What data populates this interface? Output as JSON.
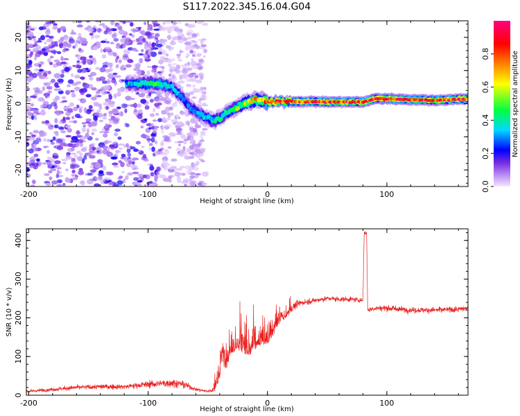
{
  "chart_data": [
    {
      "type": "heatmap",
      "title": "S117.2022.345.16.04.G04",
      "xlabel": "Height of straight line (km)",
      "ylabel": "Frequency (Hz)",
      "xlim": [
        -202,
        168
      ],
      "ylim": [
        -25,
        25
      ],
      "xticks": [
        -200,
        -100,
        0,
        100
      ],
      "yticks": [
        -20,
        -10,
        0,
        10,
        20
      ],
      "colorbar": {
        "label": "Normalized spectral amplitude",
        "range": [
          0,
          1
        ],
        "ticks": [
          "0.0",
          "0.2",
          "0.4",
          "0.6",
          "0.8"
        ],
        "tick_values": [
          0.0,
          0.2,
          0.4,
          0.6,
          0.8
        ],
        "colors": [
          "#f4e6ff",
          "#7b2fe0",
          "#0000ff",
          "#00d8ff",
          "#00ff40",
          "#ffff00",
          "#ff8000",
          "#ff0000",
          "#ff0080"
        ]
      },
      "noise_region": {
        "x_start": -202,
        "x_end": -52
      },
      "ridge": {
        "x": [
          -118,
          -110,
          -100,
          -90,
          -80,
          -72,
          -65,
          -58,
          -52,
          -46,
          -40,
          -35,
          -30,
          -25,
          -20,
          -15,
          -10,
          -5,
          0,
          10,
          20,
          40,
          60,
          80,
          90,
          100,
          120,
          140,
          168
        ],
        "y": [
          6,
          6,
          6,
          6,
          5,
          2,
          -1,
          -3,
          -4,
          -5,
          -4.5,
          -3,
          -2,
          -1,
          0,
          0.8,
          1.2,
          1.0,
          0.5,
          0.6,
          0.6,
          0.6,
          0.5,
          0.5,
          1.5,
          1.5,
          1.2,
          1.0,
          1.5
        ],
        "amplitude": [
          0.3,
          0.4,
          0.45,
          0.45,
          0.35,
          0.3,
          0.3,
          0.35,
          0.35,
          0.4,
          0.4,
          0.4,
          0.45,
          0.5,
          0.55,
          0.6,
          0.7,
          0.75,
          0.8,
          0.82,
          0.85,
          0.88,
          0.9,
          0.88,
          0.9,
          0.9,
          0.88,
          0.85,
          0.9
        ]
      }
    },
    {
      "type": "line",
      "title": "",
      "xlabel": "Height of straight line (km)",
      "ylabel": "SNR (10 * v/v)",
      "xlim": [
        -202,
        168
      ],
      "ylim": [
        0,
        430
      ],
      "xticks": [
        -200,
        -100,
        0,
        100
      ],
      "yticks": [
        0,
        100,
        200,
        300,
        400
      ],
      "series": [
        {
          "color": "#e8201e",
          "x": [
            -200,
            -180,
            -160,
            -140,
            -120,
            -100,
            -90,
            -80,
            -70,
            -60,
            -50,
            -45,
            -40,
            -38,
            -35,
            -30,
            -25,
            -20,
            -15,
            -10,
            -5,
            0,
            5,
            10,
            15,
            20,
            25,
            30,
            40,
            50,
            60,
            70,
            80,
            81,
            82,
            83,
            84,
            85,
            90,
            100,
            120,
            140,
            160,
            168
          ],
          "y": [
            10,
            15,
            20,
            22,
            22,
            28,
            30,
            32,
            28,
            15,
            10,
            15,
            60,
            110,
            90,
            130,
            140,
            130,
            120,
            140,
            150,
            145,
            170,
            200,
            210,
            225,
            235,
            240,
            245,
            250,
            248,
            248,
            245,
            420,
            420,
            420,
            220,
            220,
            225,
            225,
            220,
            220,
            222,
            225
          ],
          "noise": [
            5,
            8,
            10,
            10,
            10,
            14,
            16,
            18,
            14,
            7,
            5,
            12,
            40,
            50,
            45,
            40,
            40,
            40,
            40,
            35,
            30,
            30,
            25,
            25,
            20,
            18,
            15,
            12,
            10,
            10,
            10,
            10,
            10,
            8,
            8,
            8,
            12,
            12,
            12,
            12,
            12,
            12,
            12,
            12
          ]
        }
      ]
    }
  ]
}
